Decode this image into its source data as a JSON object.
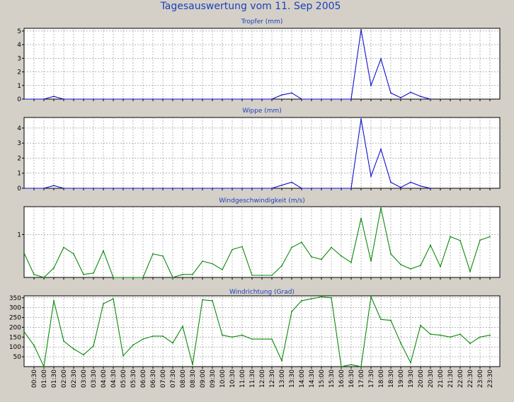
{
  "title": "Tagesauswertung vom 11. Sep 2005",
  "colors": {
    "background": "#d4d0c8",
    "plot_background": "#ffffff",
    "grid": "#8a8a8a",
    "title": "#1d3fb8",
    "rain_line": "#1010d0",
    "wind_line": "#0a8a0a"
  },
  "chart_data": [
    {
      "type": "line",
      "title": "Tropfer (mm)",
      "ylim": [
        0,
        5.2
      ],
      "yticks": [
        0,
        1,
        2,
        3,
        4,
        5
      ],
      "grid": true,
      "series": [
        {
          "x": [
            "00:00",
            "00:30",
            "01:00",
            "01:30",
            "02:00",
            "02:30",
            "03:00",
            "03:30",
            "04:00",
            "04:30",
            "05:00",
            "05:30",
            "06:00",
            "06:30",
            "07:00",
            "07:30",
            "08:00",
            "08:30",
            "09:00",
            "09:30",
            "10:00",
            "10:30",
            "11:00",
            "11:30",
            "12:00",
            "12:30",
            "13:00",
            "13:30",
            "14:00",
            "14:30",
            "15:00",
            "15:30",
            "16:00",
            "16:30",
            "17:00",
            "17:30",
            "18:00",
            "18:30",
            "19:00",
            "19:30",
            "20:00",
            "20:30"
          ],
          "values": [
            0,
            0,
            0,
            0.2,
            0,
            0,
            0,
            0,
            0,
            0,
            0,
            0,
            0,
            0,
            0,
            0,
            0,
            0,
            0,
            0,
            0,
            0,
            0,
            0,
            0,
            0,
            0.3,
            0.45,
            0,
            0,
            0,
            0,
            0,
            0,
            5.1,
            1,
            2.95,
            0.45,
            0.1,
            0.5,
            0.2,
            0
          ]
        }
      ]
    },
    {
      "type": "line",
      "title": "Wippe (mm)",
      "ylim": [
        0,
        4.7
      ],
      "yticks": [
        0,
        1,
        2,
        3,
        4
      ],
      "grid": true,
      "series": [
        {
          "x": [
            "00:00",
            "00:30",
            "01:00",
            "01:30",
            "02:00",
            "02:30",
            "03:00",
            "03:30",
            "04:00",
            "04:30",
            "05:00",
            "05:30",
            "06:00",
            "06:30",
            "07:00",
            "07:30",
            "08:00",
            "08:30",
            "09:00",
            "09:30",
            "10:00",
            "10:30",
            "11:00",
            "11:30",
            "12:00",
            "12:30",
            "13:00",
            "13:30",
            "14:00",
            "14:30",
            "15:00",
            "15:30",
            "16:00",
            "16:30",
            "17:00",
            "17:30",
            "18:00",
            "18:30",
            "19:00",
            "19:30",
            "20:00",
            "20:30"
          ],
          "values": [
            0,
            0,
            0,
            0.18,
            0,
            0,
            0,
            0,
            0,
            0,
            0,
            0,
            0,
            0,
            0,
            0,
            0,
            0,
            0,
            0,
            0,
            0,
            0,
            0,
            0,
            0,
            0.2,
            0.4,
            0,
            0,
            0,
            0,
            0,
            0,
            4.6,
            0.8,
            2.6,
            0.4,
            0.05,
            0.4,
            0.15,
            0
          ]
        }
      ]
    },
    {
      "type": "line",
      "title": "Windgeschwindigkeit (m/s)",
      "ylim": [
        0,
        1.65
      ],
      "yticks": [
        1
      ],
      "grid": true,
      "series": [
        {
          "x": [
            "00:00",
            "00:30",
            "01:00",
            "01:30",
            "02:00",
            "02:30",
            "03:00",
            "03:30",
            "04:00",
            "04:30",
            "05:00",
            "05:30",
            "06:00",
            "06:30",
            "07:00",
            "07:30",
            "08:00",
            "08:30",
            "09:00",
            "09:30",
            "10:00",
            "10:30",
            "11:00",
            "11:30",
            "12:00",
            "12:30",
            "13:00",
            "13:30",
            "14:00",
            "14:30",
            "15:00",
            "15:30",
            "16:00",
            "16:30",
            "17:00",
            "17:30",
            "18:00",
            "18:30",
            "19:00",
            "19:30",
            "20:00",
            "20:30",
            "21:00",
            "21:30",
            "22:00",
            "22:30",
            "23:00",
            "23:30"
          ],
          "values": [
            0.57,
            0.07,
            0,
            0.22,
            0.7,
            0.55,
            0.07,
            0.1,
            0.62,
            0,
            0,
            0,
            0,
            0.55,
            0.5,
            0,
            0.07,
            0.07,
            0.38,
            0.32,
            0.18,
            0.65,
            0.72,
            0.05,
            0.05,
            0.05,
            0.27,
            0.7,
            0.82,
            0.48,
            0.42,
            0.7,
            0.5,
            0.35,
            1.38,
            0.38,
            1.62,
            0.55,
            0.3,
            0.2,
            0.28,
            0.75,
            0.25,
            0.95,
            0.86,
            0.14,
            0.87,
            0.95
          ]
        }
      ]
    },
    {
      "type": "line",
      "title": "Windrichtung (Grad)",
      "ylim": [
        0,
        360
      ],
      "yticks": [
        50,
        100,
        150,
        200,
        250,
        300,
        350
      ],
      "grid": true,
      "series": [
        {
          "x": [
            "00:00",
            "00:30",
            "01:00",
            "01:30",
            "02:00",
            "02:30",
            "03:00",
            "03:30",
            "04:00",
            "04:30",
            "05:00",
            "05:30",
            "06:00",
            "06:30",
            "07:00",
            "07:30",
            "08:00",
            "08:30",
            "09:00",
            "09:30",
            "10:00",
            "10:30",
            "11:00",
            "11:30",
            "12:00",
            "12:30",
            "13:00",
            "13:30",
            "14:00",
            "14:30",
            "15:00",
            "15:30",
            "16:00",
            "16:30",
            "17:00",
            "17:30",
            "18:00",
            "18:30",
            "19:00",
            "19:30",
            "20:00",
            "20:30",
            "21:00",
            "21:30",
            "22:00",
            "22:30",
            "23:00",
            "23:30"
          ],
          "values": [
            178,
            108,
            0,
            335,
            130,
            90,
            60,
            105,
            320,
            345,
            55,
            110,
            140,
            155,
            155,
            120,
            205,
            10,
            340,
            335,
            160,
            150,
            160,
            140,
            140,
            140,
            30,
            280,
            335,
            345,
            355,
            350,
            0,
            10,
            0,
            355,
            240,
            235,
            120,
            20,
            210,
            165,
            160,
            150,
            165,
            118,
            150,
            160
          ]
        }
      ]
    }
  ],
  "x_axis": {
    "ticks": [
      "00:30",
      "01:00",
      "01:30",
      "02:00",
      "02:30",
      "03:00",
      "03:30",
      "04:00",
      "04:30",
      "05:00",
      "05:30",
      "06:00",
      "06:30",
      "07:00",
      "07:30",
      "08:00",
      "08:30",
      "09:00",
      "09:30",
      "10:00",
      "10:30",
      "11:00",
      "11:30",
      "12:00",
      "12:30",
      "13:00",
      "13:30",
      "14:00",
      "14:30",
      "15:00",
      "15:30",
      "16:00",
      "16:30",
      "17:00",
      "17:30",
      "18:00",
      "18:30",
      "19:00",
      "19:30",
      "20:00",
      "20:30",
      "21:00",
      "21:30",
      "22:00",
      "22:30",
      "23:00",
      "23:30"
    ]
  }
}
